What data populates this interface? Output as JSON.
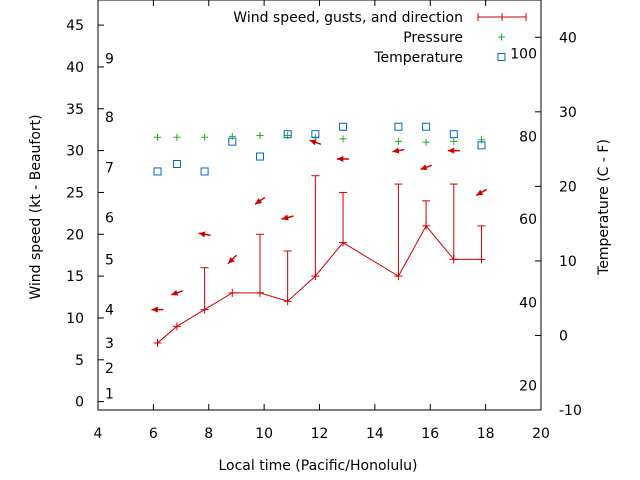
{
  "chart_data": {
    "type": "line",
    "xlabel": "Local time (Pacific/Honolulu)",
    "ylabel": "Wind speed (kt - Beaufort)",
    "y2label": "Temperature (C - F)",
    "xlim": [
      4,
      20
    ],
    "ylim": [
      -1,
      48
    ],
    "y2lim": [
      -10,
      45
    ],
    "x_ticks": [
      4,
      6,
      8,
      10,
      12,
      14,
      16,
      18,
      20
    ],
    "y_ticks": [
      0,
      5,
      10,
      15,
      20,
      25,
      30,
      35,
      40,
      45
    ],
    "y2_ticks": [
      -10,
      0,
      10,
      20,
      30,
      40
    ],
    "beaufort_labels": [
      {
        "label": "1",
        "y": 1
      },
      {
        "label": "2",
        "y": 4
      },
      {
        "label": "3",
        "y": 7
      },
      {
        "label": "4",
        "y": 11
      },
      {
        "label": "5",
        "y": 17
      },
      {
        "label": "6",
        "y": 22
      },
      {
        "label": "7",
        "y": 28
      },
      {
        "label": "8",
        "y": 34
      },
      {
        "label": "9",
        "y": 41
      }
    ],
    "fahrenheit_labels": [
      {
        "label": "20",
        "y2": -6.7
      },
      {
        "label": "40",
        "y2": 4.4
      },
      {
        "label": "60",
        "y2": 15.6
      },
      {
        "label": "80",
        "y2": 26.7
      },
      {
        "label": "100",
        "y2": 37.8
      }
    ],
    "legend_position": "top-right",
    "series": [
      {
        "name": "Wind speed, gusts, and direction",
        "color": "#cc0000",
        "x": [
          6.15,
          6.85,
          7.85,
          8.85,
          9.85,
          10.85,
          11.85,
          12.85,
          14.85,
          15.85,
          16.85,
          17.85
        ],
        "values": [
          7,
          9,
          11,
          13,
          13,
          12,
          15,
          19,
          15,
          21,
          17,
          17
        ],
        "gusts": [
          null,
          null,
          16,
          null,
          20,
          18,
          27,
          25,
          26,
          24,
          26,
          21
        ],
        "arrow_y": [
          11,
          13,
          20,
          17,
          24,
          22,
          31,
          29,
          30,
          28,
          30,
          25
        ],
        "direction_deg": [
          90,
          70,
          100,
          45,
          55,
          75,
          110,
          90,
          80,
          70,
          90,
          60
        ]
      },
      {
        "name": "Pressure",
        "color": "#22aa22",
        "x": [
          6.15,
          6.85,
          7.85,
          8.85,
          9.85,
          10.85,
          11.85,
          12.85,
          14.85,
          15.85,
          16.85,
          17.85
        ],
        "values": [
          31.6,
          31.6,
          31.6,
          31.7,
          31.8,
          31.8,
          31.6,
          31.4,
          31.1,
          31.0,
          31.1,
          31.3
        ]
      },
      {
        "name": "Temperature",
        "color": "#0066cc",
        "x": [
          6.15,
          6.85,
          7.85,
          8.85,
          9.85,
          10.85,
          11.85,
          12.85,
          14.85,
          15.85,
          16.85,
          17.85
        ],
        "values": [
          22,
          23,
          22,
          26,
          24,
          27,
          27,
          28,
          28,
          28,
          27,
          25.5
        ]
      }
    ]
  }
}
